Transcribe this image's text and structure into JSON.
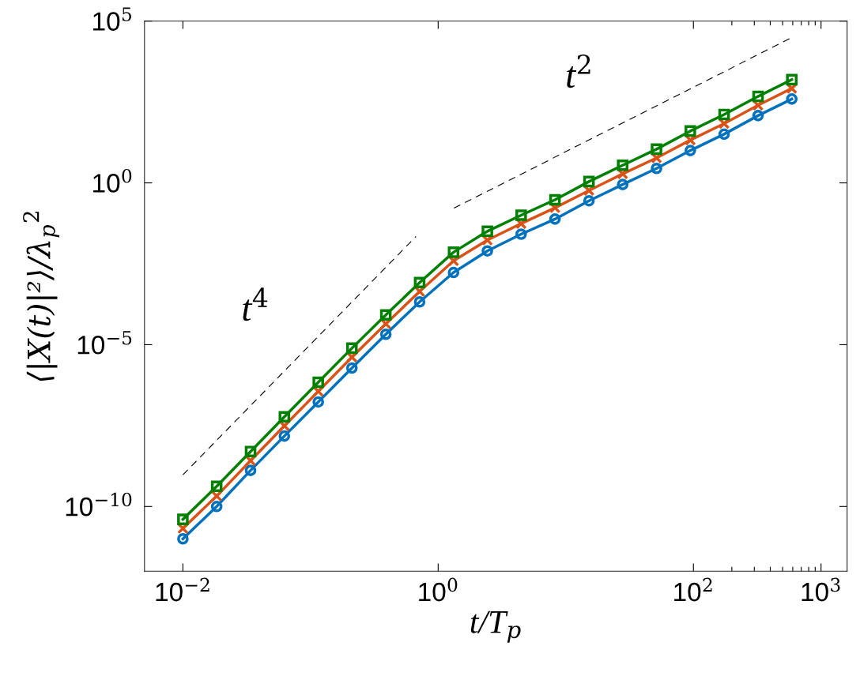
{
  "chart_data": {
    "type": "line",
    "xlabel": "t/T$_{p}$",
    "ylabel": "⟨|X(t)|²⟩/λ$_{p}$$^{2}$",
    "log": "xy",
    "grid": false,
    "line_style": "solid",
    "x": [
      0.01,
      0.0184,
      0.0339,
      0.0624,
      0.115,
      0.211,
      0.389,
      0.716,
      1.32,
      2.43,
      4.47,
      8.23,
      15.2,
      27.9,
      51.4,
      94.6,
      174,
      321,
      590
    ],
    "xlim": [
      0.005,
      1600
    ],
    "ylim": [
      1e-12,
      100000
    ],
    "xticks": [
      {
        "value": 0.01,
        "label": "10$^{−2}$"
      },
      {
        "value": 1,
        "label": "10$^{0}$"
      },
      {
        "value": 100,
        "label": "10$^{2}$"
      },
      {
        "value": 1000,
        "label": "10$^{3}$"
      }
    ],
    "yticks": [
      {
        "value": 1e-10,
        "label": "10$^{−10}$"
      },
      {
        "value": 1e-05,
        "label": "10$^{−5}$"
      },
      {
        "value": 1,
        "label": "10$^{0}$"
      },
      {
        "value": 100000,
        "label": "10$^{5}$"
      }
    ],
    "series": [
      {
        "color": "#0072bd",
        "marker": "circle",
        "values": [
          1e-11,
          1e-10,
          1.3e-09,
          1.5e-08,
          1.7e-07,
          1.9e-06,
          2.1e-05,
          0.00021,
          0.0017,
          0.0079,
          0.026,
          0.076,
          0.28,
          0.89,
          2.8,
          10,
          32,
          120,
          390
        ]
      },
      {
        "color": "#d95319",
        "marker": "cross",
        "values": [
          2.1e-11,
          2.1e-10,
          2.6e-09,
          3.1e-08,
          3.6e-07,
          4.1e-06,
          4.4e-05,
          0.00044,
          0.0039,
          0.017,
          0.055,
          0.17,
          0.58,
          1.9,
          5.9,
          21,
          68,
          250,
          830
        ]
      },
      {
        "color": "#008000",
        "marker": "square",
        "values": [
          4e-11,
          4.2e-10,
          5e-09,
          5.9e-08,
          6.9e-07,
          7.8e-06,
          8.3e-05,
          0.00083,
          0.0072,
          0.032,
          0.1,
          0.3,
          1.1,
          3.5,
          11,
          40,
          130,
          470,
          1550
        ]
      },
      {
        "color": "#000000",
        "marker": "none",
        "line_style": "dashed",
        "x": [
          0.01,
          0.67
        ],
        "values": [
          9.5e-10,
          0.022
        ]
      },
      {
        "color": "#000000",
        "marker": "none",
        "line_style": "dashed",
        "x": [
          1.33,
          600
        ],
        "values": [
          0.166,
          32000
        ]
      }
    ],
    "annotations": [
      "t$^{4}$",
      "t$^{2}$"
    ]
  }
}
